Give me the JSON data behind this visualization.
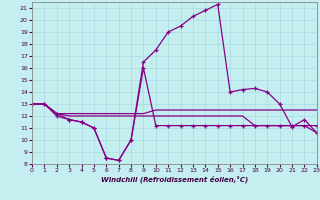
{
  "xlabel": "Windchill (Refroidissement éolien,°C)",
  "bg_color": "#c5eef0",
  "line_color": "#880088",
  "grid_color": "#a8dce0",
  "xlim": [
    0,
    23
  ],
  "ylim": [
    8,
    21.5
  ],
  "yticks": [
    8,
    9,
    10,
    11,
    12,
    13,
    14,
    15,
    16,
    17,
    18,
    19,
    20,
    21
  ],
  "xticks": [
    0,
    1,
    2,
    3,
    4,
    5,
    6,
    7,
    8,
    9,
    10,
    11,
    12,
    13,
    14,
    15,
    16,
    17,
    18,
    19,
    20,
    21,
    22,
    23
  ],
  "s1_x": [
    0,
    1,
    2,
    3,
    4,
    5,
    6,
    7,
    8,
    9,
    10,
    11,
    12,
    13,
    14,
    15,
    16,
    17,
    18,
    19,
    20,
    21,
    22,
    23
  ],
  "s1_y": [
    13,
    13,
    12,
    11.7,
    11.5,
    11.0,
    8.5,
    8.3,
    10.0,
    16.5,
    17.5,
    19.0,
    19.5,
    20.3,
    20.8,
    21.3,
    14.0,
    14.2,
    14.3,
    14.0,
    13.0,
    11.1,
    11.7,
    10.6
  ],
  "s2_x": [
    0,
    1,
    2,
    3,
    4,
    5,
    6,
    7,
    8,
    9,
    10,
    11,
    12,
    13,
    14,
    15,
    16,
    17,
    18,
    19,
    20,
    21,
    22,
    23
  ],
  "s2_y": [
    13,
    13,
    12.2,
    11.7,
    11.5,
    11.0,
    8.5,
    8.3,
    10.0,
    16.0,
    11.2,
    11.2,
    11.2,
    11.2,
    11.2,
    11.2,
    11.2,
    11.2,
    11.2,
    11.2,
    11.2,
    11.2,
    11.2,
    11.2
  ],
  "s3_x": [
    0,
    1,
    2,
    3,
    4,
    5,
    6,
    7,
    8,
    9,
    10,
    11,
    12,
    13,
    14,
    15,
    16,
    17,
    18,
    19,
    20,
    21,
    22,
    23
  ],
  "s3_y": [
    13,
    13,
    12.2,
    12.2,
    12.2,
    12.2,
    12.2,
    12.2,
    12.2,
    12.2,
    12.5,
    12.5,
    12.5,
    12.5,
    12.5,
    12.5,
    12.5,
    12.5,
    12.5,
    12.5,
    12.5,
    12.5,
    12.5,
    12.5
  ],
  "s4_x": [
    0,
    1,
    2,
    3,
    4,
    5,
    6,
    7,
    8,
    9,
    10,
    11,
    12,
    13,
    14,
    15,
    16,
    17,
    18,
    19,
    20,
    21,
    22,
    23
  ],
  "s4_y": [
    13,
    13,
    12.2,
    12.0,
    12.0,
    12.0,
    12.0,
    12.0,
    12.0,
    12.0,
    12.0,
    12.0,
    12.0,
    12.0,
    12.0,
    12.0,
    12.0,
    12.0,
    11.2,
    11.2,
    11.2,
    11.2,
    11.2,
    10.6
  ]
}
